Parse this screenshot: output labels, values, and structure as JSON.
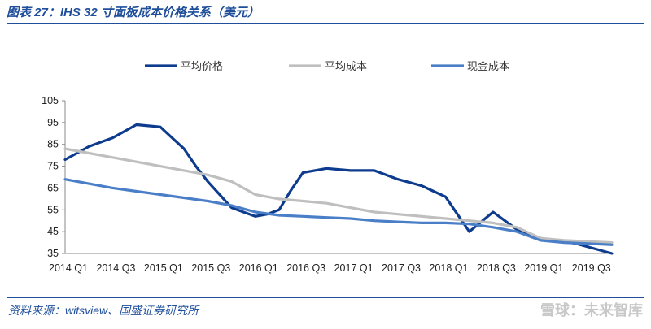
{
  "header": {
    "title": "图表 27：IHS 32 寸面板成本价格关系（美元）"
  },
  "footer": {
    "source": "资料来源：witsview、国盛证券研究所",
    "watermark": "雪球：未来智库"
  },
  "chart_data": {
    "type": "line",
    "title": "",
    "xlabel": "",
    "ylabel": "",
    "ylim": [
      35,
      105
    ],
    "yticks": [
      35,
      45,
      55,
      65,
      75,
      85,
      95,
      105
    ],
    "xtick_labels": [
      "2014 Q1",
      "2014 Q3",
      "2015 Q1",
      "2015 Q3",
      "2016 Q1",
      "2016 Q3",
      "2017 Q1",
      "2017 Q3",
      "2018 Q1",
      "2018 Q3",
      "2019 Q1",
      "2019 Q3"
    ],
    "legend_position": "top",
    "grid": false,
    "series": [
      {
        "name": "平均价格",
        "color": "#0d3b8e",
        "x": [
          0,
          0.5,
          1,
          1.5,
          2,
          2.5,
          3,
          3.5,
          4,
          4.5,
          5,
          5.5,
          6,
          6.5,
          7,
          7.5,
          8,
          8.5,
          9,
          9.5,
          10,
          10.5,
          11,
          11.5,
          12,
          12.5,
          13,
          13.5,
          14,
          14.5,
          15,
          15.5,
          16,
          16.5,
          17,
          17.5,
          18,
          18.5,
          19,
          19.5,
          20,
          20.5,
          21,
          21.5,
          22,
          22.5,
          23
        ],
        "values": [
          78,
          81,
          84,
          86,
          88,
          91,
          94,
          93.5,
          93,
          88,
          83,
          75,
          68,
          62,
          56,
          54,
          52,
          53,
          55,
          64,
          72,
          73,
          74,
          73.5,
          73,
          73,
          73,
          71,
          69,
          67.5,
          66,
          63.5,
          61,
          53,
          45,
          49.5,
          54,
          50,
          46,
          44,
          42,
          41,
          40.5,
          39.5,
          38,
          36.5,
          35
        ]
      },
      {
        "name": "平均成本",
        "color": "#bfbfbf",
        "x": [
          0,
          1,
          2,
          3,
          4,
          5,
          6,
          7,
          8,
          9,
          10,
          11,
          12,
          13,
          14,
          15,
          16,
          17,
          18,
          19,
          20,
          21,
          22,
          23
        ],
        "values": [
          83,
          81,
          79,
          77,
          75,
          73,
          71,
          68,
          62,
          60,
          59,
          58,
          56,
          54,
          53,
          52,
          51,
          50,
          49,
          47,
          42,
          41,
          40.5,
          40
        ]
      },
      {
        "name": "现金成本",
        "color": "#4a7fc8",
        "x": [
          0,
          1,
          2,
          3,
          4,
          5,
          6,
          7,
          8,
          9,
          10,
          11,
          12,
          13,
          14,
          15,
          16,
          17,
          18,
          19,
          20,
          21,
          22,
          23
        ],
        "values": [
          69,
          67,
          65,
          63.5,
          62,
          60.5,
          59,
          57,
          54,
          52.5,
          52,
          51.5,
          51,
          50,
          49.5,
          49,
          49,
          48.5,
          47,
          45,
          41,
          40,
          39.5,
          39
        ]
      }
    ]
  }
}
